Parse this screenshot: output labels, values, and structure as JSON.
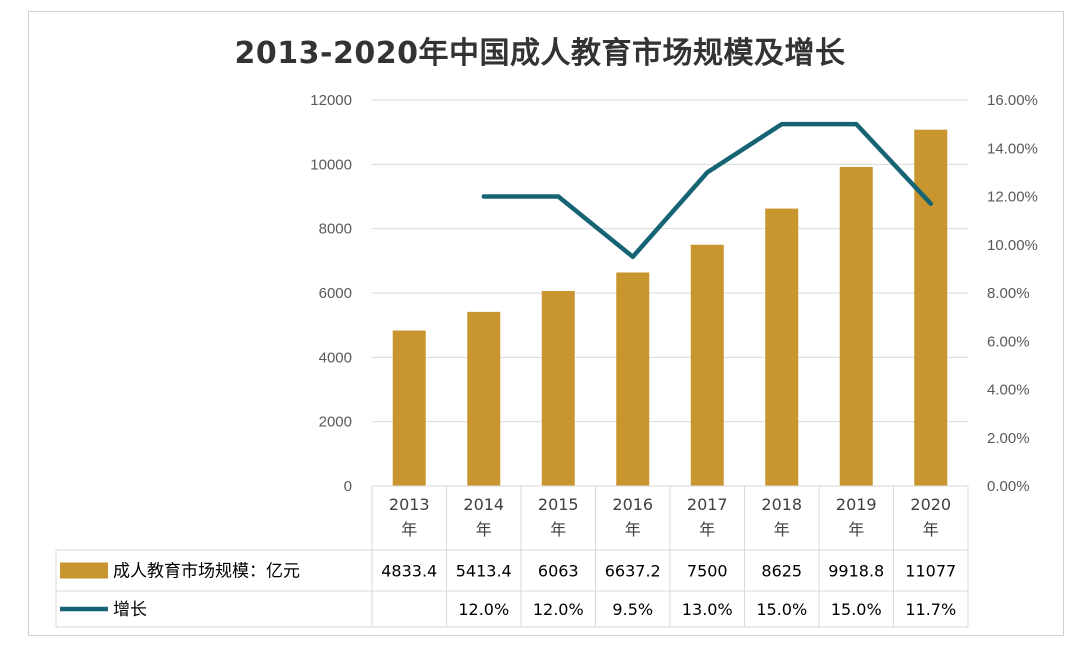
{
  "chart_data": {
    "type": "bar",
    "title": "2013-2020年中国成人教育市场规模及增长",
    "categories": [
      "2013年",
      "2014年",
      "2015年",
      "2016年",
      "2017年",
      "2018年",
      "2019年",
      "2020年"
    ],
    "series": [
      {
        "name": "成人教育市场规模：亿元",
        "type": "bar",
        "axis": "left",
        "color": "#C9952E",
        "values": [
          4833.4,
          5413.4,
          6063,
          6637.2,
          7500,
          8625,
          9918.8,
          11077
        ],
        "labels": [
          "4833.4",
          "5413.4",
          "6063",
          "6637.2",
          "7500",
          "8625",
          "9918.8",
          "11077"
        ]
      },
      {
        "name": "增长",
        "type": "line",
        "axis": "right",
        "color": "#156373",
        "values": [
          null,
          0.12,
          0.12,
          0.095,
          0.13,
          0.15,
          0.15,
          0.117
        ],
        "labels": [
          "",
          "12.0%",
          "12.0%",
          "9.5%",
          "13.0%",
          "15.0%",
          "15.0%",
          "11.7%"
        ]
      }
    ],
    "y_left": {
      "ylim": [
        0,
        12000
      ],
      "ticks": [
        "0",
        "2000",
        "4000",
        "6000",
        "8000",
        "10000",
        "12000"
      ]
    },
    "y_right": {
      "ylim": [
        0,
        0.16
      ],
      "ticks": [
        "0.00%",
        "2.00%",
        "4.00%",
        "6.00%",
        "8.00%",
        "10.00%",
        "12.00%",
        "14.00%",
        "16.00%"
      ]
    },
    "grid": true,
    "data_table": true
  }
}
